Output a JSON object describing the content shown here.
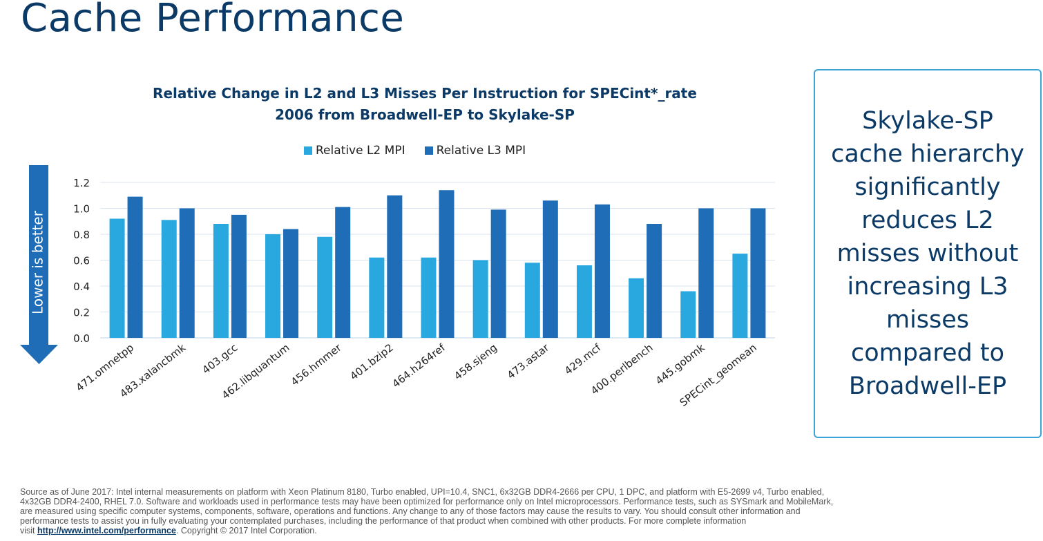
{
  "slide": {
    "title": "Cache Performance"
  },
  "chart_data": {
    "type": "bar",
    "title_line1": "Relative Change in L2 and L3 Misses Per Instruction for SPECint*_rate",
    "title_line2": "2006 from Broadwell-EP to Skylake-SP",
    "categories": [
      "471.omnetpp",
      "483.xalancbmk",
      "403.gcc",
      "462.libquantum",
      "456.hmmer",
      "401.bzip2",
      "464.h264ref",
      "458.sjeng",
      "473.astar",
      "429.mcf",
      "400.perlbench",
      "445.gobmk",
      "SPECint_geomean"
    ],
    "series": [
      {
        "name": "Relative L2 MPI",
        "color": "#29a8e0",
        "values": [
          0.92,
          0.91,
          0.88,
          0.8,
          0.78,
          0.62,
          0.62,
          0.6,
          0.58,
          0.56,
          0.46,
          0.36,
          0.65
        ]
      },
      {
        "name": "Relative L3 MPI",
        "color": "#1f6cb7",
        "values": [
          1.09,
          1.0,
          0.95,
          0.84,
          1.01,
          1.1,
          1.14,
          0.99,
          1.06,
          1.03,
          0.88,
          1.0,
          1.0
        ]
      }
    ],
    "yticks": [
      "0.0",
      "0.2",
      "0.4",
      "0.6",
      "0.8",
      "1.0",
      "1.2"
    ],
    "ylim": [
      0,
      1.2
    ],
    "grid": true,
    "legend_position": "top",
    "arrow_label": "Lower is better",
    "arrow_color": "#1f6cb7"
  },
  "callout": {
    "text": "Skylake-SP\ncache hierarchy\nsignificantly\nreduces L2\nmisses without\nincreasing L3\nmisses\ncompared to\nBroadwell-EP"
  },
  "footnote": {
    "line1": "Source as of June 2017: Intel internal measurements on platform with Xeon Platinum 8180, Turbo enabled, UPI=10.4, SNC1, 6x32GB DDR4-2666 per CPU, 1 DPC, and platform with E5-2699 v4, Turbo enabled,",
    "line2": "4x32GB DDR4-2400, RHEL 7.0. Software and workloads used in performance tests may have been optimized for performance only on Intel microprocessors. Performance tests, such as SYSmark and MobileMark,",
    "line3": "are measured using specific computer systems, components, software, operations and functions. Any change to any of those factors may cause the results to vary. You should consult other information and",
    "line4": "performance tests to assist you in fully evaluating your contemplated purchases, including the performance of that product when combined with other products.  For more complete information",
    "visit": "visit ",
    "link_text": "http://www.intel.com/performance",
    "copyright": ".  Copyright © 2017 Intel Corporation."
  }
}
